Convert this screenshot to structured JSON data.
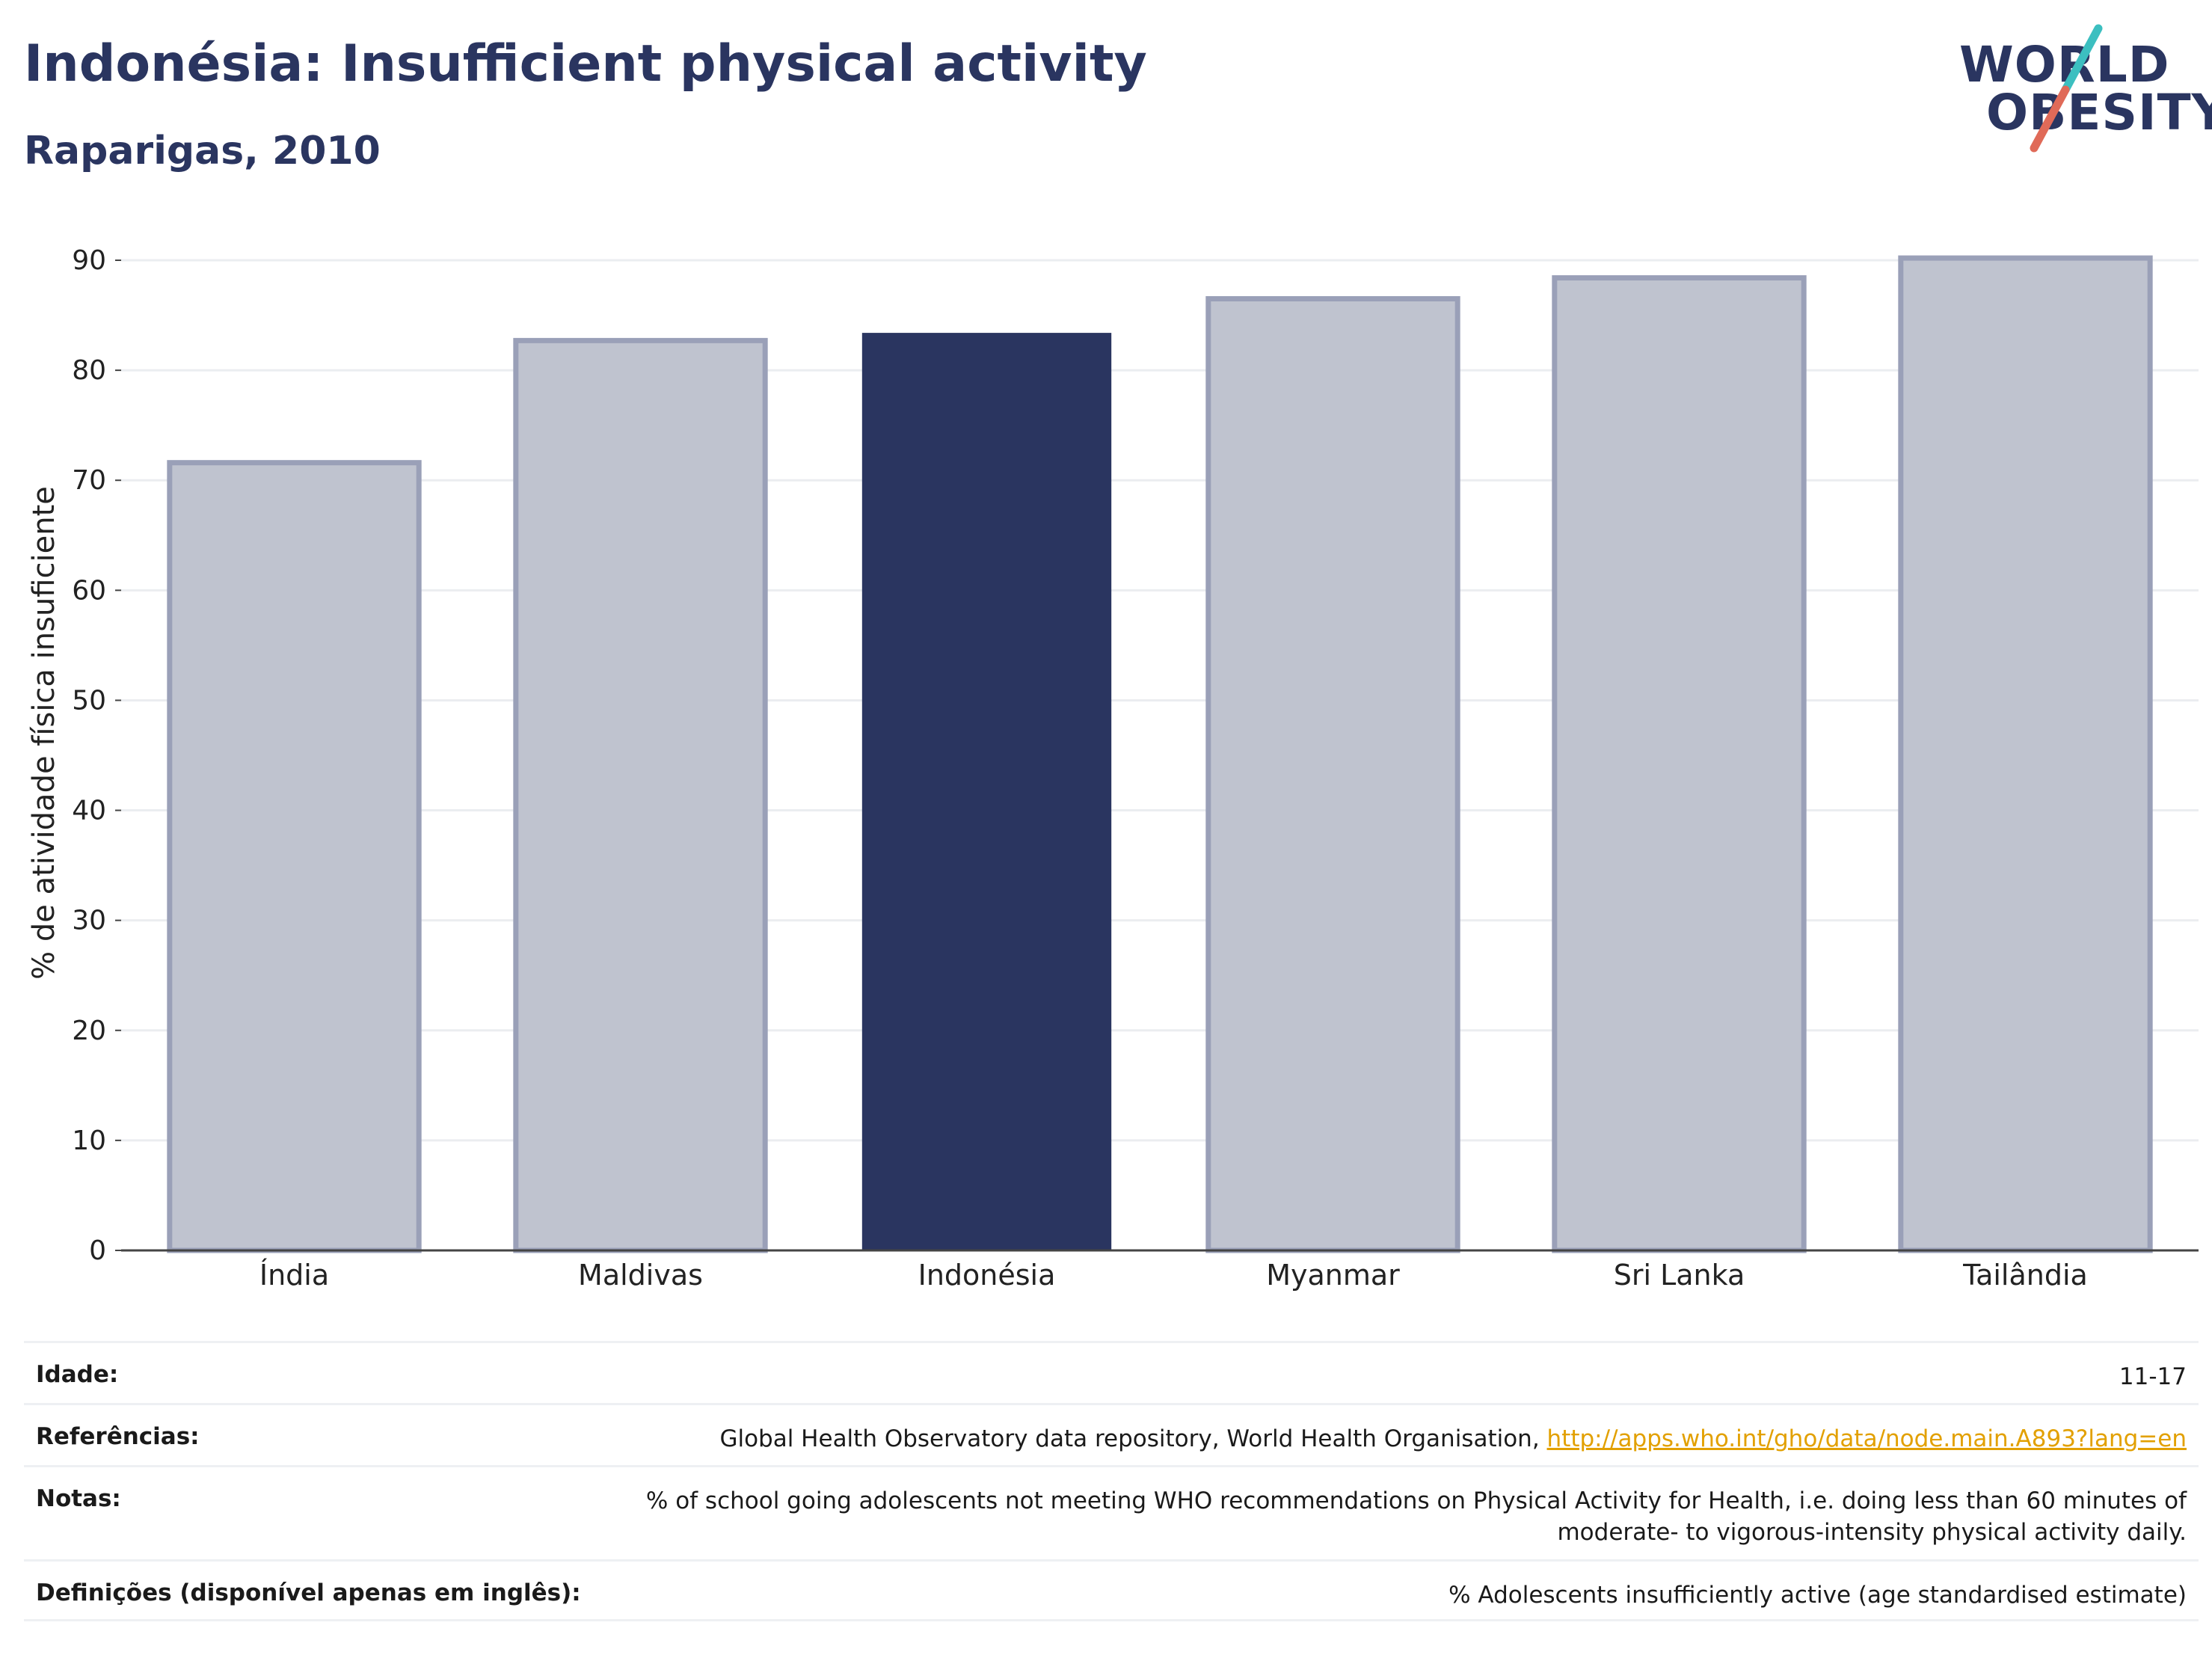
{
  "header": {
    "title": "Indonésia: Insufficient physical activity",
    "subtitle": "Raparigas, 2010"
  },
  "logo": {
    "line1": "WORLD",
    "line2": "OBESITY",
    "accent_colors": [
      "#3cbfc0",
      "#e06a58"
    ]
  },
  "chart_data": {
    "type": "bar",
    "title": "",
    "xlabel": "",
    "ylabel": "% de atividade física insuficiente",
    "categories": [
      "Índia",
      "Maldivas",
      "Indonésia",
      "Myanmar",
      "Sri Lanka",
      "Tailândia"
    ],
    "values": [
      71.6,
      82.7,
      83.4,
      86.5,
      88.4,
      90.2
    ],
    "highlight": "Indonésia",
    "ylim": [
      0,
      90
    ],
    "yticks": [
      0,
      10,
      20,
      30,
      40,
      50,
      60,
      70,
      80,
      90
    ],
    "grid": true,
    "legend": "none",
    "colors": {
      "highlight": "#2a3560",
      "other_fill": "#bfc3cf",
      "other_stroke": "#9aa0b8"
    }
  },
  "info_table": {
    "age": {
      "label": "Idade:",
      "value": "11-17"
    },
    "references": {
      "label": "Referências:",
      "text": "Global Health Observatory data repository, World Health Organisation,",
      "link": "http://apps.who.int/gho/data/node.main.A893?lang=en"
    },
    "notes": {
      "label": "Notas:",
      "line1": "% of school going adolescents not meeting WHO recommendations on Physical Activity for Health, i.e. doing less than 60 minutes of",
      "line2": "moderate- to vigorous-intensity physical activity daily."
    },
    "definitions": {
      "label": "Definições (disponível apenas em inglês):",
      "value": "% Adolescents insufficiently active (age standardised estimate)"
    }
  }
}
